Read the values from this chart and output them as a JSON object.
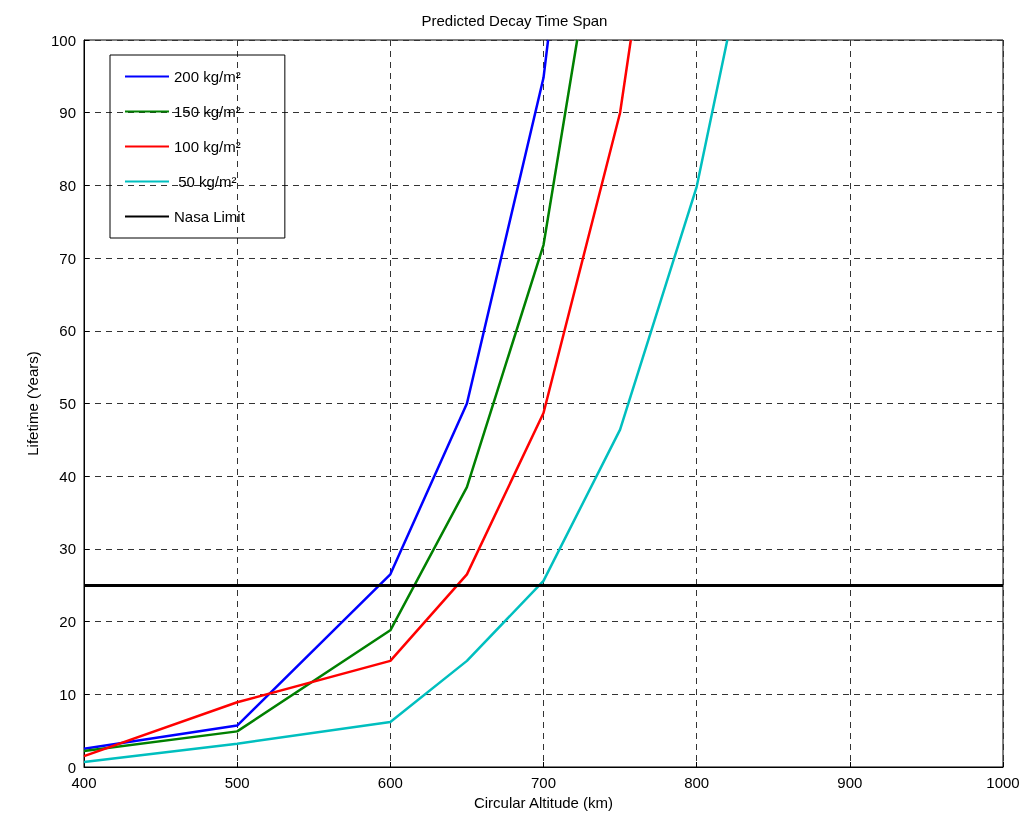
{
  "chart_data": {
    "type": "line",
    "title": "Predicted Decay Time Span",
    "xlabel": "Circular Altitude (km)",
    "ylabel": "Lifetime (Years)",
    "series": [
      {
        "name": "200 kg/m²",
        "color": "#0000ff",
        "x": [
          400,
          500,
          600,
          650,
          700,
          703
        ],
        "values": [
          2.5,
          5.7,
          26.5,
          50,
          94.8,
          100
        ]
      },
      {
        "name": "150 kg/m²",
        "color": "#008000",
        "x": [
          400,
          500,
          600,
          650,
          700,
          722
        ],
        "values": [
          2.2,
          4.9,
          18.8,
          38.5,
          71.8,
          100
        ]
      },
      {
        "name": "100 kg/m²",
        "color": "#ff0000",
        "x": [
          400,
          500,
          600,
          650,
          700,
          750,
          757
        ],
        "values": [
          1.5,
          8.9,
          14.6,
          26.5,
          48.7,
          90,
          100
        ]
      },
      {
        "name": " 50 kg/m²",
        "color": "#00bfbf",
        "x": [
          400,
          500,
          600,
          650,
          700,
          750,
          800,
          820
        ],
        "values": [
          0.7,
          3.2,
          6.2,
          14.6,
          25.6,
          46.4,
          79.8,
          100
        ]
      }
    ],
    "ref_lines": [
      {
        "axis": "y",
        "value": 25,
        "label": "Nasa Limit",
        "color": "#000000"
      }
    ],
    "xlim": [
      400,
      1000
    ],
    "xticks": [
      400,
      500,
      600,
      700,
      800,
      900,
      1000
    ],
    "ylim": [
      0,
      100
    ],
    "yticks": [
      0,
      10,
      20,
      30,
      40,
      50,
      60,
      70,
      80,
      90,
      100
    ],
    "grid": true,
    "legend": "top left",
    "marker": "none",
    "line_style": "solid"
  }
}
